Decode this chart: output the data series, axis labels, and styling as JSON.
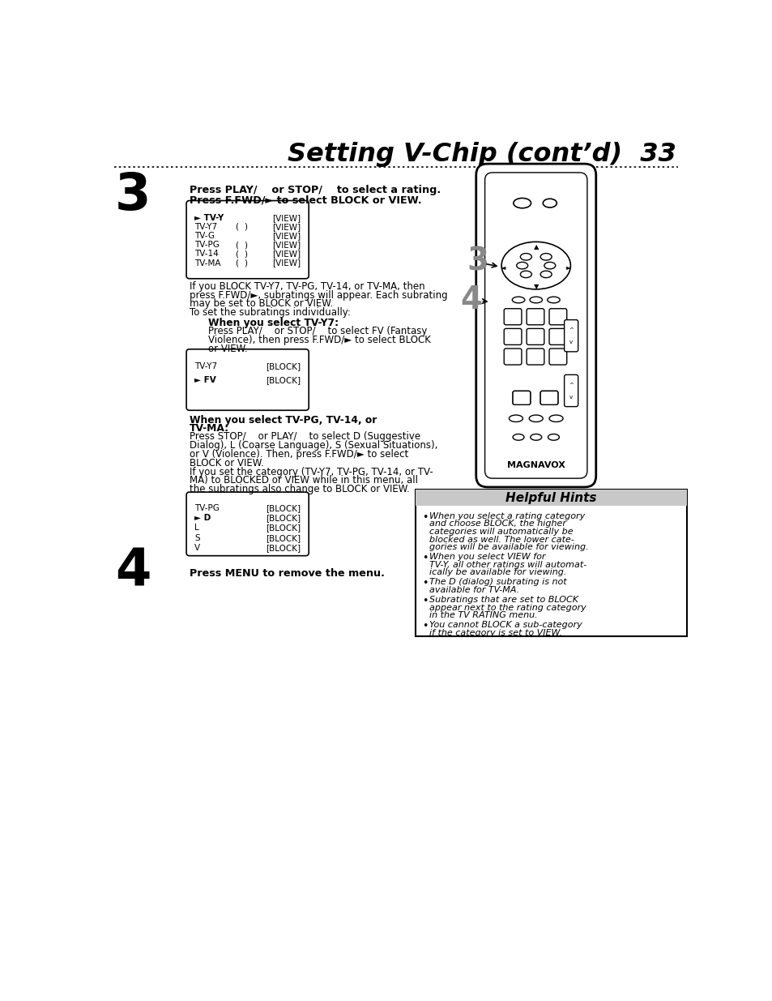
{
  "title": "Setting V-Chip (cont’d)  33",
  "bg_color": "#ffffff",
  "step3_header1": "Press PLAY/    or STOP/    to select a rating.",
  "step3_header2": "Press F.FWD/► to select BLOCK or VIEW.",
  "step3_number": "3",
  "step4_number": "4",
  "step4_text": "Press MENU to remove the menu.",
  "box1_items": [
    [
      "► TV-Y",
      "",
      "",
      "[VIEW]"
    ],
    [
      "TV-Y7",
      "(",
      ")",
      "[VIEW]"
    ],
    [
      "TV-G",
      "",
      "",
      "[VIEW]"
    ],
    [
      "TV-PG",
      "(",
      ")",
      "[VIEW]"
    ],
    [
      "TV-14",
      "(",
      ")",
      "[VIEW]"
    ],
    [
      "TV-MA",
      "(",
      ")",
      "[VIEW]"
    ]
  ],
  "para1_lines": [
    "If you BLOCK TV-Y7, TV-PG, TV-14, or TV-MA, then",
    "press F.FWD/►, subratings will appear. Each subrating",
    "may be set to BLOCK or VIEW.",
    "To set the subratings individually:"
  ],
  "when_y7_title": "When you select TV-Y7:",
  "when_y7_lines": [
    "Press PLAY/    or STOP/    to select FV (Fantasy",
    "Violence), then press F.FWD/► to select BLOCK",
    "or VIEW."
  ],
  "box2_items": [
    [
      "TV-Y7",
      "[BLOCK]"
    ],
    [
      "► FV",
      "[BLOCK]"
    ]
  ],
  "when_tvpg_title1": "When you select TV-PG, TV-14, or",
  "when_tvpg_title2": "TV-MA:",
  "when_tvpg_lines": [
    "Press STOP/    or PLAY/    to select D (Suggestive",
    "Dialog), L (Coarse Language), S (Sexual Situations),",
    "or V (Violence). Then, press F.FWD/► to select",
    "BLOCK or VIEW.",
    "If you set the category (TV-Y7, TV-PG, TV-14, or TV-",
    "MA) to BLOCKED or VIEW while in this menu, all",
    "the subratings also change to BLOCK or VIEW."
  ],
  "box3_items": [
    [
      "TV-PG",
      "[BLOCK]"
    ],
    [
      "► D",
      "[BLOCK]"
    ],
    [
      "L",
      "[BLOCK]"
    ],
    [
      "S",
      "[BLOCK]"
    ],
    [
      "V",
      "[BLOCK]"
    ]
  ],
  "hints_title": "Helpful Hints",
  "hints": [
    [
      "When you select a rating category",
      "and choose BLOCK, the higher",
      "categories will automatically be",
      "blocked as well. The lower cate-",
      "gories will be available for viewing."
    ],
    [
      "When you select VIEW for",
      "TV-Y, all other ratings will automat-",
      "ically be available for viewing."
    ],
    [
      "The D (dialog) subrating is not",
      "available for TV-MA."
    ],
    [
      "Subratings that are set to BLOCK",
      "appear next to the rating category",
      "in the TV RATING menu."
    ],
    [
      "You cannot BLOCK a sub-category",
      "if the category is set to VIEW."
    ]
  ]
}
